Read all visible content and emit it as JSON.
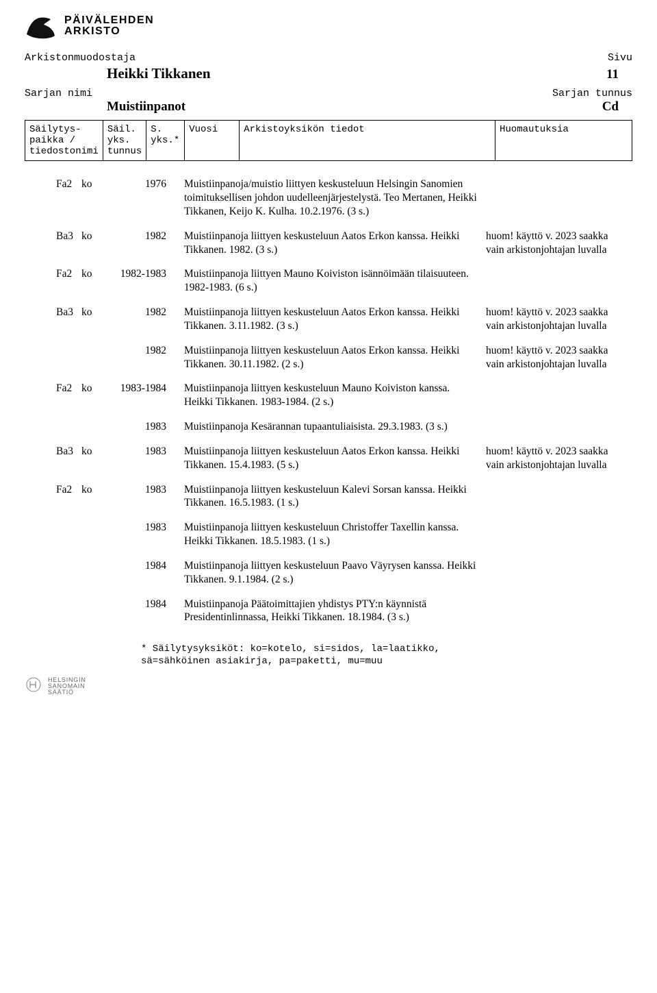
{
  "masthead": {
    "line1": "PÄIVÄLEHDEN",
    "line2": "ARKISTO"
  },
  "labels": {
    "arkistonmuodostaja": "Arkistonmuodostaja",
    "sivu": "Sivu",
    "sarjan_nimi": "Sarjan nimi",
    "sarjan_tunnus": "Sarjan tunnus"
  },
  "title": {
    "name": "Heikki Tikkanen",
    "page": "11"
  },
  "series": {
    "name": "Muistiinpanot",
    "code": "Cd"
  },
  "columns": {
    "c1": "Säilytys-\npaikka /\ntiedostonimi",
    "c2": "Säil.\nyks.\ntunnus",
    "c3": "S.\nyks.*",
    "c4": "Vuosi",
    "c5": "Arkistoyksikön tiedot",
    "c6": "Huomautuksia"
  },
  "note_text": "huom! käyttö v. 2023 saakka vain arkistonjohtajan luvalla",
  "rows": [
    {
      "loc": "Fa2",
      "unit": "ko",
      "year": "1976",
      "desc": "Muistiinpanoja/muistio liittyen keskusteluun Helsingin Sanomien toimituksellisen johdon uudelleenjärjestelystä. Teo Mertanen, Heikki Tikkanen, Keijo K. Kulha. 10.2.1976. (3 s.)",
      "note": ""
    },
    {
      "loc": "Ba3",
      "unit": "ko",
      "year": "1982",
      "desc": "Muistiinpanoja liittyen keskusteluun Aatos Erkon kanssa. Heikki Tikkanen. 1982. (3 s.)",
      "note": "huom! käyttö v. 2023 saakka vain arkistonjohtajan luvalla"
    },
    {
      "loc": "Fa2",
      "unit": "ko",
      "year": "1982-1983",
      "desc": "Muistiinpanoja liittyen Mauno Koiviston isännöimään tilaisuuteen. 1982-1983. (6 s.)",
      "note": ""
    },
    {
      "loc": "Ba3",
      "unit": "ko",
      "year": "1982",
      "desc": "Muistiinpanoja liittyen keskusteluun Aatos Erkon kanssa. Heikki Tikkanen. 3.11.1982. (3 s.)",
      "note": "huom! käyttö v. 2023 saakka vain arkistonjohtajan luvalla"
    },
    {
      "loc": "",
      "unit": "",
      "year": "1982",
      "desc": "Muistiinpanoja liittyen keskusteluun Aatos Erkon kanssa. Heikki Tikkanen. 30.11.1982. (2 s.)",
      "note": "huom! käyttö v. 2023 saakka vain arkistonjohtajan luvalla"
    },
    {
      "loc": "Fa2",
      "unit": "ko",
      "year": "1983-1984",
      "desc": "Muistiinpanoja liittyen keskusteluun Mauno Koiviston kanssa. Heikki Tikkanen. 1983-1984. (2 s.)",
      "note": ""
    },
    {
      "loc": "",
      "unit": "",
      "year": "1983",
      "desc": "Muistiinpanoja Kesärannan tupaantuliaisista. 29.3.1983. (3 s.)",
      "note": ""
    },
    {
      "loc": "Ba3",
      "unit": "ko",
      "year": "1983",
      "desc": "Muistiinpanoja liittyen keskusteluun Aatos Erkon kanssa. Heikki Tikkanen. 15.4.1983. (5 s.)",
      "note": "huom! käyttö v. 2023 saakka vain arkistonjohtajan luvalla"
    },
    {
      "loc": "Fa2",
      "unit": "ko",
      "year": "1983",
      "desc": "Muistiinpanoja liittyen keskusteluun Kalevi Sorsan kanssa. Heikki Tikkanen. 16.5.1983. (1 s.)",
      "note": ""
    },
    {
      "loc": "",
      "unit": "",
      "year": "1983",
      "desc": "Muistiinpanoja liittyen keskusteluun Christoffer Taxellin kanssa. Heikki Tikkanen. 18.5.1983. (1 s.)",
      "note": ""
    },
    {
      "loc": "",
      "unit": "",
      "year": "1984",
      "desc": "Muistiinpanoja liittyen keskusteluun Paavo Väyrysen kanssa. Heikki Tikkanen. 9.1.1984. (2 s.)",
      "note": ""
    },
    {
      "loc": "",
      "unit": "",
      "year": "1984",
      "desc": "Muistiinpanoja Päätoimittajien yhdistys PTY:n käynnistä Presidentinlinnassa, Heikki Tikkanen. 18.1984. (3 s.)",
      "note": ""
    }
  ],
  "footnote": {
    "l1": "* Säilytysyksiköt: ko=kotelo, si=sidos, la=laatikko,",
    "l2": "  sä=sähköinen asiakirja, pa=paketti, mu=muu"
  },
  "footer": {
    "l1": "HELSINGIN",
    "l2": "SANOMAIN",
    "l3": "SÄÄTIÖ"
  }
}
